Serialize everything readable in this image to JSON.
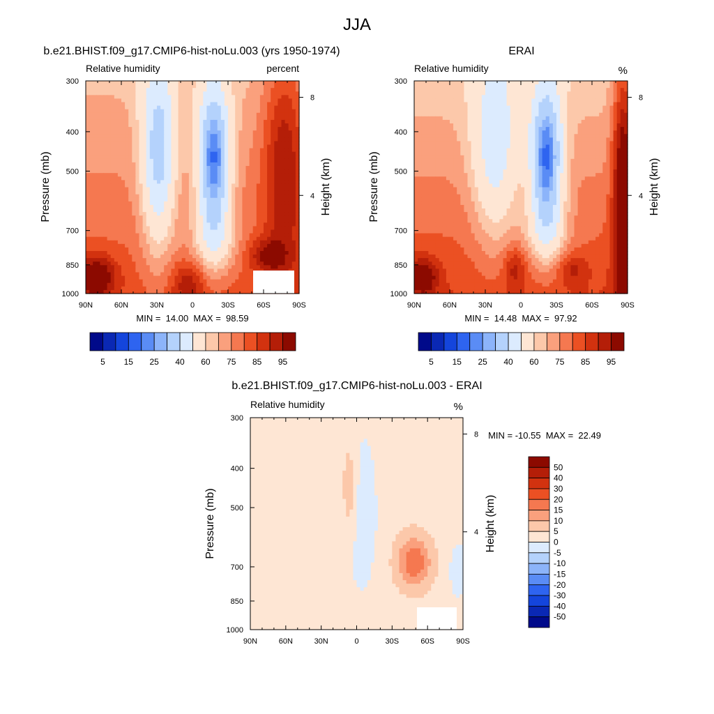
{
  "page_title": "JJA",
  "palettes": {
    "rh": [
      "#000a8a",
      "#0a28b4",
      "#1445dc",
      "#2e64f0",
      "#5a8cf5",
      "#8cb4fa",
      "#b4d2fc",
      "#dcebfe",
      "#fee6d4",
      "#fcc8aa",
      "#faa07d",
      "#f57850",
      "#eb5023",
      "#d2320f",
      "#b41e08",
      "#8c0a00"
    ],
    "diff": [
      "#000a8a",
      "#0a28b4",
      "#1445dc",
      "#2e64f0",
      "#5a8cf5",
      "#8cb4fa",
      "#b4d2fc",
      "#dcebfe",
      "#fee6d4",
      "#fcc8aa",
      "#faa07d",
      "#f57850",
      "#eb5023",
      "#d2320f",
      "#b41e08",
      "#8c0a00"
    ]
  },
  "chart_data": [
    {
      "type": "heatmap",
      "title": "b.e21.BHIST.f09_g17.CMIP6-hist-noLu.003 (yrs 1950-1974)",
      "left_label": "Relative humidity",
      "right_label": "percent",
      "ylabel": "Pressure (mb)",
      "ylabel_right": "Height (km)",
      "x_ticks": [
        "90N",
        "60N",
        "30N",
        "0",
        "30S",
        "60S",
        "90S"
      ],
      "y_ticks": [
        "300",
        "400",
        "500",
        "700",
        "850",
        "1000"
      ],
      "right_ticks": [
        "8",
        "4"
      ],
      "min_max": "MIN =  14.00  MAX =  98.59",
      "min": 14.0,
      "max": 98.59,
      "colorbar_labels": [
        "5",
        "15",
        "25",
        "40",
        "60",
        "75",
        "85",
        "95"
      ],
      "grid": false
    },
    {
      "type": "heatmap",
      "title": "ERAI",
      "left_label": "Relative humidity",
      "right_label": "%",
      "ylabel": "Pressure (mb)",
      "ylabel_right": "Height (km)",
      "x_ticks": [
        "90N",
        "60N",
        "30N",
        "0",
        "30S",
        "60S",
        "90S"
      ],
      "y_ticks": [
        "300",
        "400",
        "500",
        "700",
        "850",
        "1000"
      ],
      "right_ticks": [
        "8",
        "4"
      ],
      "min_max": "MIN =  14.48  MAX =  97.92",
      "min": 14.48,
      "max": 97.92,
      "colorbar_labels": [
        "5",
        "15",
        "25",
        "40",
        "60",
        "75",
        "85",
        "95"
      ],
      "grid": false
    },
    {
      "type": "heatmap",
      "title": "b.e21.BHIST.f09_g17.CMIP6-hist-noLu.003 - ERAI",
      "left_label": "Relative humidity",
      "right_label": "%",
      "ylabel": "Pressure (mb)",
      "ylabel_right": "Height (km)",
      "x_ticks": [
        "90N",
        "60N",
        "30N",
        "0",
        "30S",
        "60S",
        "90S"
      ],
      "y_ticks": [
        "300",
        "400",
        "500",
        "700",
        "850",
        "1000"
      ],
      "right_ticks": [
        "8",
        "4"
      ],
      "min_max": "MIN = -10.55  MAX =  22.49",
      "min": -10.55,
      "max": 22.49,
      "colorbar_labels": [
        "50",
        "40",
        "30",
        "20",
        "15",
        "10",
        "5",
        "0",
        "-5",
        "-10",
        "-15",
        "-20",
        "-30",
        "-40",
        "-50"
      ],
      "grid": false
    }
  ]
}
